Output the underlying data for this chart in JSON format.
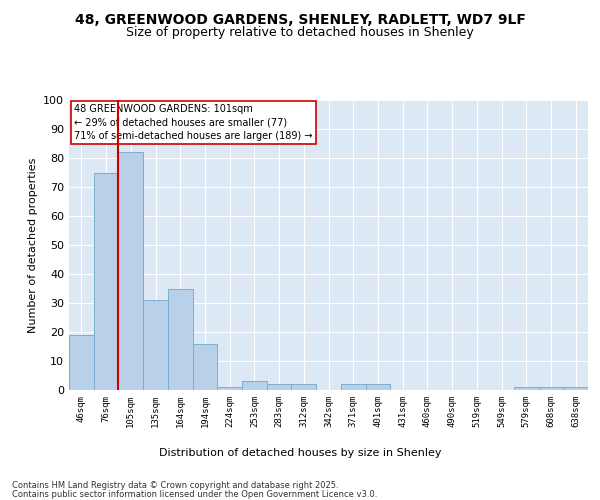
{
  "title1": "48, GREENWOOD GARDENS, SHENLEY, RADLETT, WD7 9LF",
  "title2": "Size of property relative to detached houses in Shenley",
  "xlabel": "Distribution of detached houses by size in Shenley",
  "ylabel": "Number of detached properties",
  "bar_labels": [
    "46sqm",
    "76sqm",
    "105sqm",
    "135sqm",
    "164sqm",
    "194sqm",
    "224sqm",
    "253sqm",
    "283sqm",
    "312sqm",
    "342sqm",
    "371sqm",
    "401sqm",
    "431sqm",
    "460sqm",
    "490sqm",
    "519sqm",
    "549sqm",
    "579sqm",
    "608sqm",
    "638sqm"
  ],
  "bar_values": [
    19,
    75,
    82,
    31,
    35,
    16,
    1,
    3,
    2,
    2,
    0,
    2,
    2,
    0,
    0,
    0,
    0,
    0,
    1,
    1,
    1
  ],
  "bar_color": "#b8d0e8",
  "bar_edgecolor": "#7aaed0",
  "vline_color": "#cc0000",
  "annotation_text": "48 GREENWOOD GARDENS: 101sqm\n← 29% of detached houses are smaller (77)\n71% of semi-detached houses are larger (189) →",
  "annotation_box_edgecolor": "#cc0000",
  "annotation_box_facecolor": "#ffffff",
  "ylim": [
    0,
    100
  ],
  "yticks": [
    0,
    10,
    20,
    30,
    40,
    50,
    60,
    70,
    80,
    90,
    100
  ],
  "plot_bg_color": "#dce9f5",
  "footer1": "Contains HM Land Registry data © Crown copyright and database right 2025.",
  "footer2": "Contains public sector information licensed under the Open Government Licence v3.0.",
  "title_fontsize": 10,
  "subtitle_fontsize": 9
}
